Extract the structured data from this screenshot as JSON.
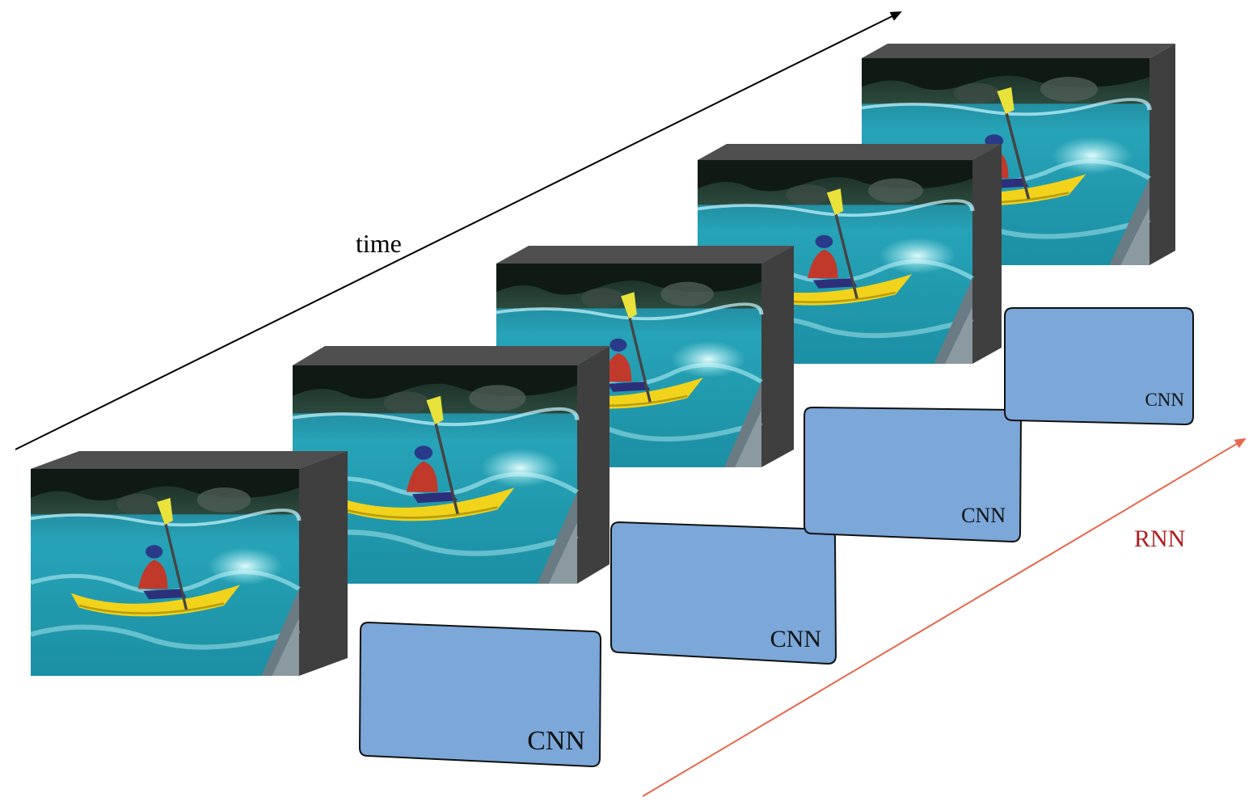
{
  "labels": {
    "time": "time",
    "rnn": "RNN",
    "cnn": "CNN"
  },
  "frames": [
    {
      "id": "frame-1"
    },
    {
      "id": "frame-2"
    },
    {
      "id": "frame-3"
    },
    {
      "id": "frame-4"
    },
    {
      "id": "frame-5"
    }
  ],
  "cnn_blocks": [
    {
      "label": "CNN"
    },
    {
      "label": "CNN"
    },
    {
      "label": "CNN"
    },
    {
      "label": "CNN"
    },
    {
      "label": "CNN"
    }
  ],
  "colors": {
    "time_arrow": "#000000",
    "rnn_arrow": "#e8674a",
    "rnn_text": "#b01c1c",
    "cnn_fill": "#7ba7d9",
    "cnn_stroke": "#111111",
    "frame_side": "#3f3f3f",
    "frame_top": "#4f4f4f",
    "water": "#2aa8b8",
    "forest": "#1f3a30",
    "rock": "#6a7b84",
    "kayak": "#f2d31b"
  },
  "icons": {
    "frame_content": "kayak-photo-icon"
  }
}
